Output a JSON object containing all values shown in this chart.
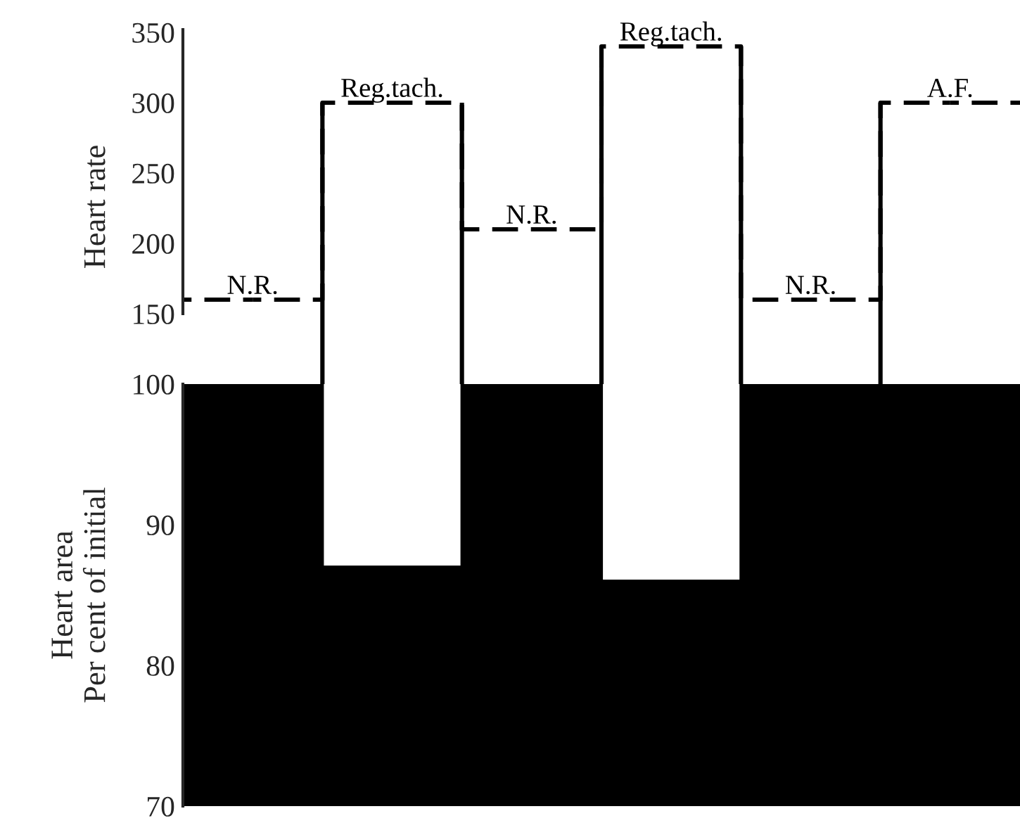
{
  "chart_data": [
    {
      "type": "step",
      "categories": [
        "N.R.",
        "Reg.tach.",
        "N.R.",
        "Reg.tach.",
        "N.R.",
        "A.F."
      ],
      "ylabel": "Heart rate",
      "values": [
        160,
        300,
        210,
        340,
        160,
        300
      ],
      "color": "#000000",
      "line_style": "dashed",
      "ylim": [
        100,
        352
      ],
      "yticks": [
        150,
        200,
        250,
        300,
        350
      ],
      "grid": false
    },
    {
      "type": "bar",
      "categories": [
        null,
        null,
        null,
        null,
        null,
        null
      ],
      "ylabel": "Heart area\nPer cent of initial",
      "values": [
        100,
        87,
        100,
        86,
        100,
        100
      ],
      "color": "#000000",
      "ylim": [
        70,
        100
      ],
      "yticks": [
        70,
        80,
        90,
        100
      ],
      "grid": false
    }
  ]
}
